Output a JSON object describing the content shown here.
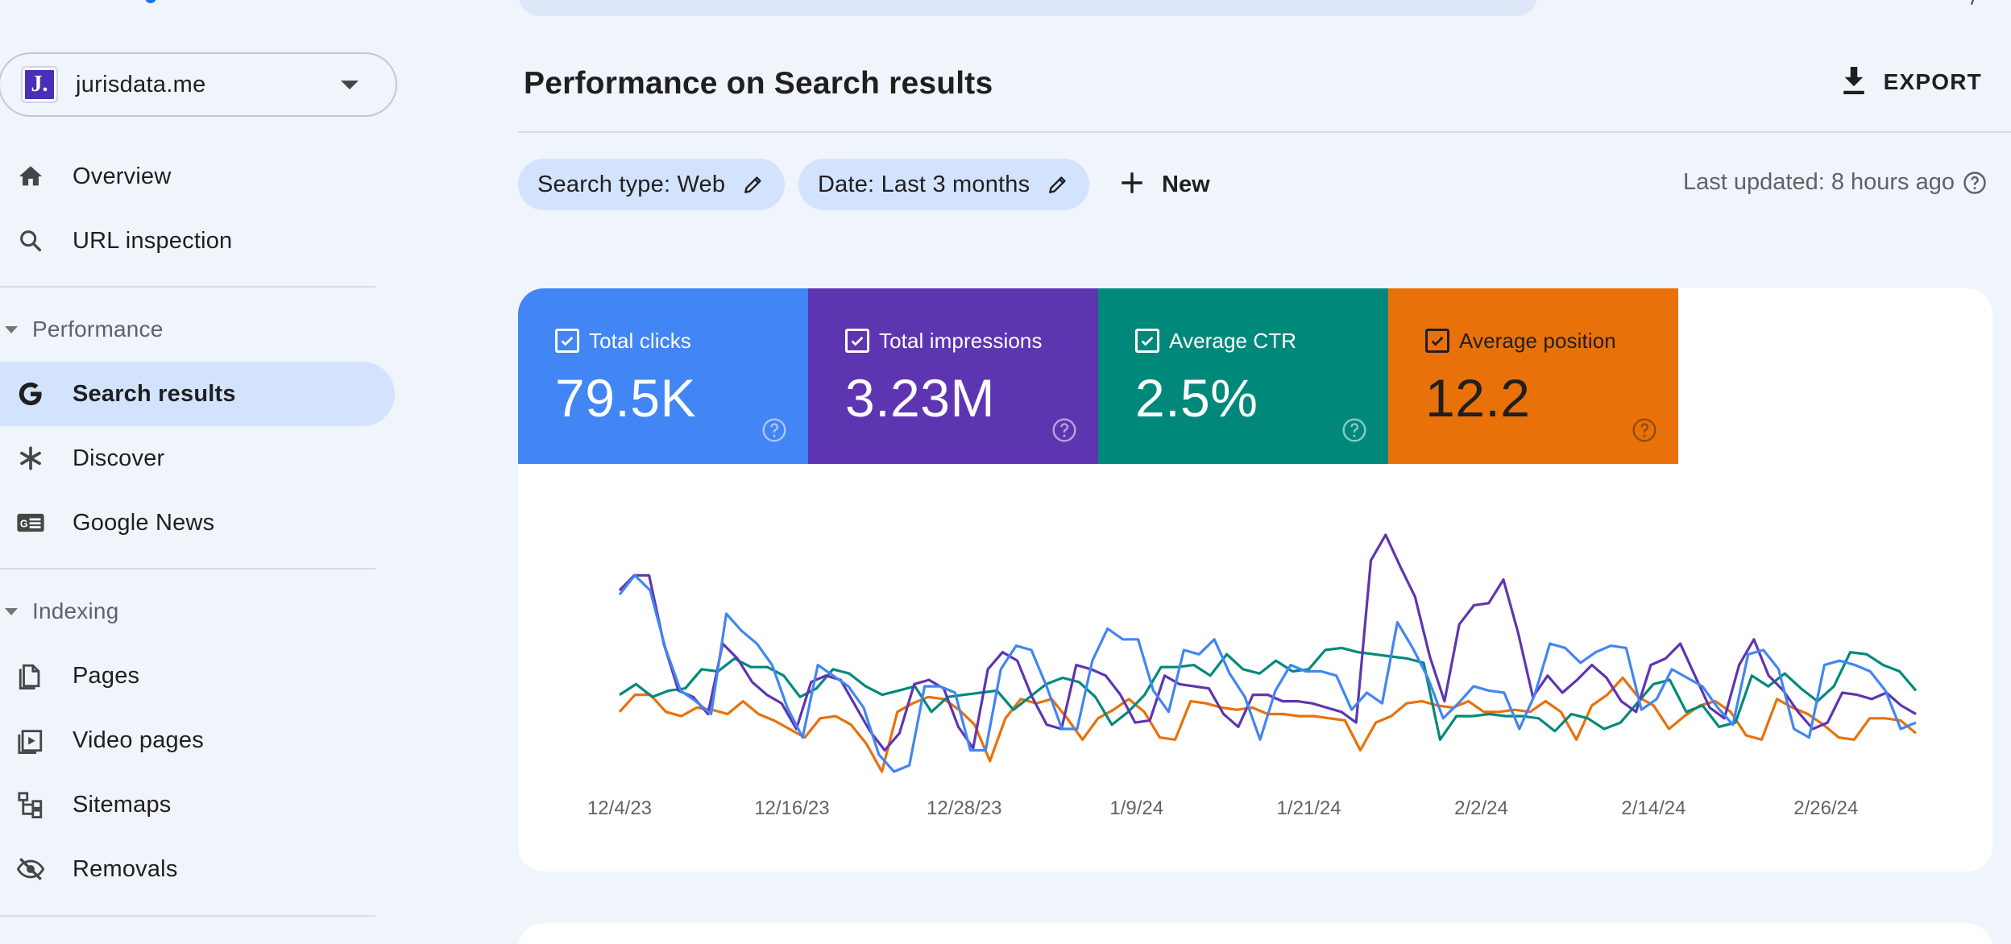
{
  "property": {
    "logo_letter": "J.",
    "name": "jurisdata.me"
  },
  "nav": {
    "overview": "Overview",
    "url_inspection": "URL inspection",
    "performance_section": "Performance",
    "search_results": "Search results",
    "discover": "Discover",
    "google_news": "Google News",
    "indexing_section": "Indexing",
    "pages": "Pages",
    "video_pages": "Video pages",
    "sitemaps": "Sitemaps",
    "removals": "Removals"
  },
  "header": {
    "title": "Performance on Search results",
    "export_label": "EXPORT"
  },
  "filters": {
    "search_type": "Search type: Web",
    "date": "Date: Last 3 months",
    "new_label": "New",
    "last_updated": "Last updated: 8 hours ago"
  },
  "metrics": [
    {
      "label": "Total clicks",
      "value": "79.5K",
      "color": "#4285f4",
      "checked": true
    },
    {
      "label": "Total impressions",
      "value": "3.23M",
      "color": "#5e35b1",
      "checked": true
    },
    {
      "label": "Average CTR",
      "value": "2.5%",
      "color": "#00897b",
      "checked": true
    },
    {
      "label": "Average position",
      "value": "12.2",
      "color": "#e8710a",
      "checked": true
    }
  ],
  "chart_data": {
    "type": "line",
    "x_tick_labels": [
      "12/4/23",
      "12/16/23",
      "12/28/23",
      "1/9/24",
      "1/21/24",
      "2/2/24",
      "2/14/24",
      "2/26/24"
    ],
    "x_range": [
      "12/4/23",
      "3/5/24"
    ],
    "y_axis_shown": false,
    "grid": false,
    "series": [
      {
        "name": "Total clicks",
        "color": "#4285f4",
        "values": [
          83,
          92,
          85,
          58,
          38,
          33,
          27,
          74,
          66,
          60,
          50,
          30,
          16,
          50,
          45,
          40,
          30,
          8,
          0,
          3,
          40,
          40,
          37,
          10,
          10,
          48,
          59,
          57,
          40,
          20,
          20,
          52,
          67,
          62,
          62,
          38,
          28,
          57,
          55,
          62,
          46,
          35,
          15,
          38,
          50,
          47,
          47,
          45,
          29,
          37,
          32,
          70,
          58,
          44,
          25,
          32,
          40,
          38,
          37,
          20,
          36,
          60,
          58,
          51,
          56,
          59,
          58,
          29,
          34,
          48,
          44,
          40,
          30,
          22,
          55,
          57,
          48,
          20,
          16,
          50,
          52,
          50,
          47,
          38,
          20,
          23
        ]
      },
      {
        "name": "Total impressions",
        "color": "#5e35b1",
        "values": [
          85,
          92,
          92,
          60,
          38,
          35,
          27,
          60,
          53,
          42,
          36,
          32,
          20,
          42,
          45,
          43,
          31,
          19,
          10,
          18,
          41,
          43,
          39,
          21,
          11,
          48,
          56,
          52,
          35,
          22,
          20,
          50,
          48,
          45,
          36,
          23,
          24,
          45,
          41,
          40,
          39,
          27,
          21,
          36,
          36,
          33,
          33,
          32,
          30,
          28,
          23,
          99,
          111,
          96,
          82,
          54,
          33,
          69,
          78,
          79,
          90,
          65,
          35,
          45,
          37,
          43,
          50,
          44,
          33,
          28,
          50,
          53,
          60,
          45,
          30,
          25,
          50,
          62,
          45,
          38,
          28,
          20,
          23,
          37,
          36,
          34,
          37,
          31,
          27
        ]
      },
      {
        "name": "Average CTR",
        "color": "#00897b",
        "values": [
          36,
          41,
          35,
          38,
          39,
          48,
          47,
          53,
          49,
          49,
          45,
          35,
          39,
          48,
          46,
          40,
          36,
          38,
          40,
          28,
          35,
          36,
          37,
          38,
          29,
          35,
          41,
          44,
          42,
          35,
          22,
          28,
          36,
          49,
          49,
          50,
          45,
          55,
          48,
          46,
          52,
          47,
          48,
          57,
          58,
          56,
          55,
          54,
          53,
          51,
          15,
          26,
          26,
          27,
          26,
          26,
          25,
          19,
          27,
          25,
          20,
          23,
          32,
          41,
          43,
          28,
          31,
          21,
          23,
          45,
          40,
          46,
          39,
          33,
          40,
          56,
          55,
          50,
          47,
          38
        ]
      },
      {
        "name": "Average position",
        "color": "#e8710a",
        "values": [
          28,
          36,
          36,
          28,
          26,
          30,
          29,
          27,
          33,
          27,
          24,
          20,
          16,
          25,
          26,
          22,
          13,
          0,
          28,
          32,
          35,
          34,
          29,
          22,
          5,
          25,
          34,
          32,
          34,
          25,
          15,
          25,
          29,
          34,
          28,
          16,
          15,
          33,
          32,
          30,
          29,
          30,
          27,
          27,
          26,
          26,
          25,
          24,
          10,
          23,
          26,
          32,
          33,
          31,
          30,
          33,
          28,
          28,
          29,
          28,
          33,
          28,
          15,
          31,
          36,
          44,
          35,
          31,
          20,
          26,
          31,
          33,
          28,
          17,
          15,
          34,
          30,
          27,
          22,
          16,
          15,
          25,
          25,
          24,
          18
        ]
      }
    ]
  }
}
